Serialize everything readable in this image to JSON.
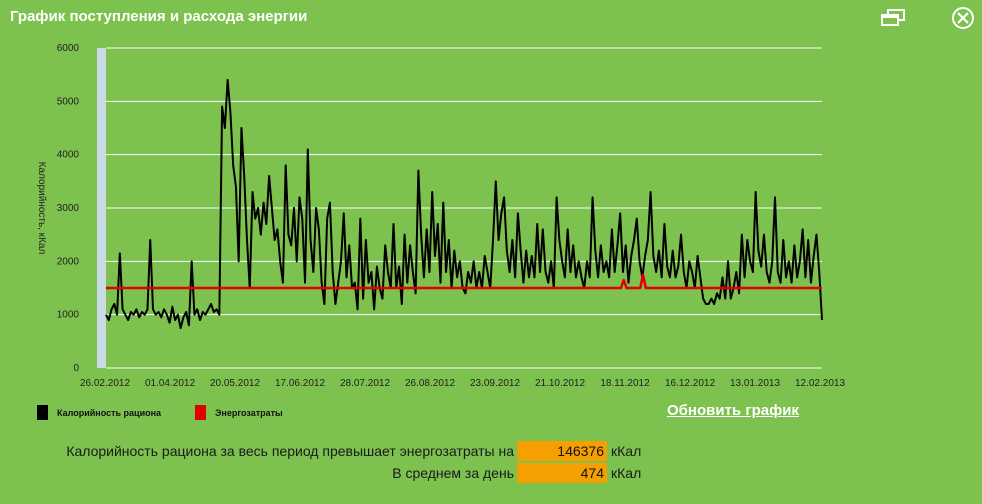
{
  "window": {
    "title": "График поступления и расхода энергии"
  },
  "chart_data": {
    "type": "line",
    "ylabel": "Калорийность, кКал",
    "ylim": [
      0,
      6000
    ],
    "yticks": [
      0,
      1000,
      2000,
      3000,
      4000,
      5000,
      6000
    ],
    "xticks": [
      "26.02.2012",
      "01.04.2012",
      "20.05.2012",
      "17.06.2012",
      "28.07.2012",
      "26.08.2012",
      "23.09.2012",
      "21.10.2012",
      "18.11.2012",
      "16.12.2012",
      "13.01.2013",
      "12.02.2013"
    ],
    "series": [
      {
        "name": "Калорийность рациона",
        "color": "#000000",
        "values": [
          1000,
          900,
          1100,
          1200,
          1000,
          2150,
          1100,
          1000,
          900,
          1050,
          1000,
          1100,
          950,
          1050,
          1000,
          1100,
          2400,
          1100,
          1000,
          1050,
          950,
          1100,
          1000,
          850,
          1150,
          900,
          1000,
          750,
          950,
          1050,
          800,
          2000,
          1000,
          1100,
          900,
          1050,
          1000,
          1100,
          1200,
          1050,
          1100,
          1000,
          4900,
          4500,
          5400,
          4800,
          3800,
          3400,
          2000,
          4500,
          3600,
          2400,
          1500,
          3300,
          2800,
          3000,
          2500,
          3100,
          2700,
          3600,
          3000,
          2400,
          2600,
          2000,
          1600,
          3800,
          2500,
          2300,
          3000,
          2000,
          3200,
          2800,
          1600,
          4100,
          2400,
          1800,
          3000,
          2600,
          1600,
          1200,
          2800,
          3100,
          1800,
          1200,
          1600,
          2000,
          2900,
          1700,
          2300,
          1500,
          1600,
          1100,
          2800,
          1300,
          2400,
          1600,
          1800,
          1100,
          1900,
          1500,
          1300,
          2300,
          1800,
          1500,
          2700,
          1500,
          1900,
          1200,
          2500,
          1600,
          2300,
          1800,
          1400,
          3700,
          2500,
          1700,
          2600,
          1800,
          3300,
          2100,
          2700,
          1600,
          3100,
          1800,
          2400,
          1500,
          2200,
          1700,
          2000,
          1500,
          1400,
          1800,
          1600,
          2000,
          1500,
          1800,
          1500,
          2100,
          1800,
          1500,
          2400,
          3500,
          2400,
          2900,
          3200,
          2200,
          1800,
          2400,
          1700,
          2900,
          2200,
          1600,
          2200,
          1700,
          2100,
          1700,
          2700,
          1800,
          2600,
          1800,
          1600,
          2000,
          1500,
          3200,
          2400,
          2000,
          1700,
          2600,
          1800,
          2300,
          1700,
          2000,
          1700,
          1500,
          2000,
          1700,
          3200,
          2200,
          1700,
          2300,
          1800,
          2000,
          1700,
          2600,
          1800,
          2300,
          2900,
          1800,
          2300,
          1600,
          2100,
          2400,
          2800,
          2000,
          1700,
          2100,
          2400,
          3300,
          2100,
          1800,
          2200,
          1700,
          2700,
          1900,
          1700,
          2200,
          1700,
          1900,
          2500,
          1800,
          1500,
          2000,
          1800,
          1500,
          2100,
          1700,
          1300,
          1200,
          1200,
          1300,
          1200,
          1400,
          1300,
          1700,
          1300,
          2000,
          1300,
          1500,
          1800,
          1400,
          2500,
          1700,
          2400,
          2000,
          1800,
          3300,
          2200,
          1900,
          2500,
          1800,
          1600,
          2000,
          3200,
          1800,
          1600,
          2400,
          1700,
          2000,
          1600,
          2300,
          1700,
          2000,
          2600,
          1700,
          2400,
          1600,
          2100,
          2500,
          1800,
          900
        ]
      },
      {
        "name": "Энергозатраты",
        "color": "#e00000",
        "values": [
          1500,
          1500,
          1500,
          1500,
          1500,
          1500,
          1500,
          1500,
          1500,
          1500,
          1500,
          1500,
          1500,
          1500,
          1500,
          1500,
          1500,
          1500,
          1500,
          1500,
          1500,
          1500,
          1500,
          1500,
          1500,
          1500,
          1500,
          1500,
          1500,
          1500,
          1500,
          1500,
          1500,
          1500,
          1500,
          1500,
          1500,
          1500,
          1500,
          1500,
          1500,
          1500,
          1500,
          1500,
          1500,
          1500,
          1500,
          1500,
          1500,
          1500,
          1500,
          1500,
          1500,
          1500,
          1500,
          1500,
          1500,
          1500,
          1500,
          1500,
          1500,
          1500,
          1500,
          1500,
          1500,
          1500,
          1500,
          1500,
          1500,
          1500,
          1500,
          1500,
          1500,
          1500,
          1500,
          1500,
          1500,
          1500,
          1500,
          1500,
          1500,
          1500,
          1500,
          1500,
          1500,
          1500,
          1500,
          1500,
          1500,
          1500,
          1500,
          1500,
          1500,
          1500,
          1500,
          1500,
          1500,
          1500,
          1500,
          1500,
          1500,
          1500,
          1500,
          1500,
          1500,
          1500,
          1500,
          1500,
          1500,
          1500,
          1500,
          1500,
          1500,
          1500,
          1500,
          1500,
          1500,
          1500,
          1500,
          1500,
          1500,
          1500,
          1500,
          1500,
          1500,
          1500,
          1500,
          1500,
          1500,
          1500,
          1500,
          1500,
          1500,
          1500,
          1500,
          1500,
          1500,
          1500,
          1500,
          1500,
          1500,
          1500,
          1500,
          1500,
          1500,
          1500,
          1500,
          1500,
          1500,
          1500,
          1500,
          1500,
          1500,
          1500,
          1500,
          1500,
          1500,
          1500,
          1500,
          1500,
          1500,
          1500,
          1500,
          1500,
          1500,
          1500,
          1500,
          1500,
          1500,
          1500,
          1500,
          1500,
          1500,
          1500,
          1500,
          1500,
          1500,
          1500,
          1500,
          1500,
          1500,
          1500,
          1500,
          1500,
          1500,
          1500,
          1500,
          1500,
          1650,
          1500,
          1500,
          1500,
          1500,
          1500,
          1500,
          1750,
          1500,
          1500,
          1500,
          1500,
          1500,
          1500,
          1500,
          1500,
          1500,
          1500,
          1500,
          1500,
          1500,
          1500,
          1500,
          1500,
          1500,
          1500,
          1500,
          1500,
          1500,
          1500,
          1500,
          1500,
          1500,
          1500,
          1500,
          1500,
          1500,
          1500,
          1500,
          1500,
          1500,
          1500,
          1500,
          1500,
          1500,
          1500,
          1500,
          1500,
          1500,
          1500,
          1500,
          1500,
          1500,
          1500,
          1500,
          1500,
          1500,
          1500,
          1500,
          1500,
          1500,
          1500,
          1500,
          1500,
          1500,
          1500,
          1500,
          1500,
          1500,
          1500,
          1500,
          1500,
          1500
        ]
      }
    ],
    "grid": true,
    "legend": "bottom-left"
  },
  "legend": {
    "intake_label": "Калорийность рациона",
    "expense_label": "Энергозатраты"
  },
  "actions": {
    "refresh_label": "Обновить график"
  },
  "summary": {
    "excess_label": "Калорийность рациона за весь период превышает энергозатраты на",
    "excess_value": "146376",
    "excess_unit": "кКал",
    "avg_label": "В среднем за день",
    "avg_value": "474",
    "avg_unit": "кКал"
  }
}
